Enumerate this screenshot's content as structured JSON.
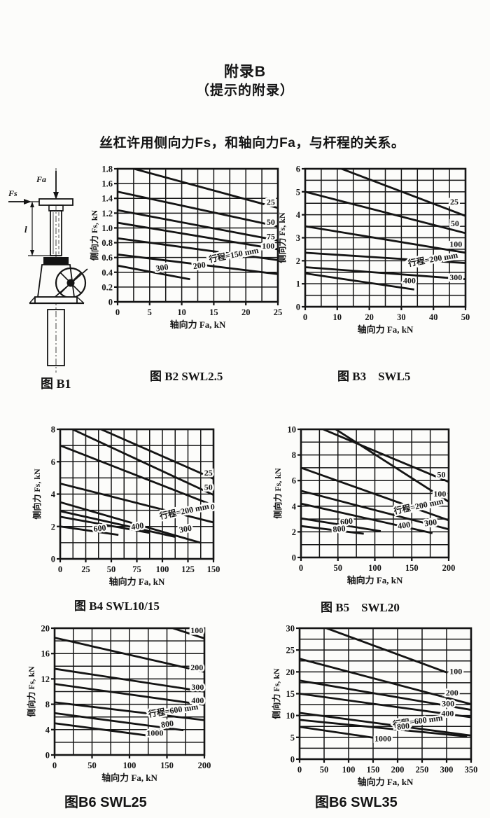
{
  "page": {
    "title": "附录B",
    "subtitle": "（提示的附录）",
    "intro": "丝杠许用侧向力Fs，和轴向力Fa，与杆程的关系。"
  },
  "figure_b1": {
    "caption": "图 B1",
    "axial_force_label": "Fa",
    "side_force_label": "Fs",
    "stroke_length_label": "l"
  },
  "chart_data": [
    {
      "type": "line",
      "id": "b2",
      "caption": "图 B2 SWL2.5",
      "x_label": "轴向力 Fa, kN",
      "y_label": "侧向力 Fs, kN",
      "x_min": 0,
      "x_max": 25,
      "x_grid": 2.5,
      "x_ticks": [
        "0",
        "5",
        "10",
        "15",
        "20",
        "25"
      ],
      "y_min": 0,
      "y_max": 1.8,
      "y_grid": 0.2,
      "y_ticks": [
        "0",
        "0.2",
        "0.4",
        "0.6",
        "0.8",
        "1.0",
        "1.2",
        "1.4",
        "1.6",
        "1.8"
      ],
      "lines": [
        {
          "label": "25",
          "pts": [
            [
              0,
              1.86
            ],
            [
              25,
              1.27
            ]
          ],
          "label_at": [
            23.9,
            1.31
          ],
          "rot": 0
        },
        {
          "label": "50",
          "pts": [
            [
              0,
              1.49
            ],
            [
              25,
              1.02
            ]
          ],
          "label_at": [
            23.9,
            1.04
          ],
          "rot": 0
        },
        {
          "label": "75",
          "pts": [
            [
              0,
              1.24
            ],
            [
              25,
              0.83
            ]
          ],
          "label_at": [
            23.9,
            0.85
          ],
          "rot": 0
        },
        {
          "label": "100",
          "pts": [
            [
              0,
              1.07
            ],
            [
              25,
              0.71
            ]
          ],
          "label_at": [
            23.5,
            0.72
          ],
          "rot": 0
        },
        {
          "label": "行程=150 mm",
          "pts": [
            [
              0,
              0.86
            ],
            [
              25,
              0.565
            ]
          ],
          "label_at": [
            18.2,
            0.6
          ],
          "rot": -11
        },
        {
          "label": "200",
          "pts": [
            [
              0,
              0.64
            ],
            [
              25,
              0.375
            ]
          ],
          "label_at": [
            12.8,
            0.455
          ],
          "rot": -8
        },
        {
          "label": "300",
          "pts": [
            [
              0,
              0.49
            ],
            [
              11.3,
              0.305
            ]
          ],
          "label_at": [
            7.0,
            0.425
          ],
          "rot": -9
        }
      ]
    },
    {
      "type": "line",
      "id": "b3",
      "caption": "图 B3　SWL5",
      "x_label": "轴向力 Fa, kN",
      "y_label": "侧向力 Fs, kN",
      "x_min": 0,
      "x_max": 50,
      "x_grid": 5,
      "x_ticks": [
        "0",
        "10",
        "20",
        "30",
        "40",
        "50"
      ],
      "y_min": 0,
      "y_max": 6,
      "y_grid": 0.5,
      "y_ticks": [
        "0",
        "1",
        "2",
        "3",
        "4",
        "5",
        "6"
      ],
      "lines": [
        {
          "label": "25",
          "pts": [
            [
              0,
              6.6
            ],
            [
              50,
              3.95
            ]
          ],
          "label_at": [
            46.5,
            4.45
          ],
          "rot": 0
        },
        {
          "label": "50",
          "pts": [
            [
              0,
              5.0
            ],
            [
              50,
              3.2
            ]
          ],
          "label_at": [
            46.7,
            3.5
          ],
          "rot": 0
        },
        {
          "label": "100",
          "pts": [
            [
              0,
              3.5
            ],
            [
              50,
              2.35
            ]
          ],
          "label_at": [
            47.0,
            2.6
          ],
          "rot": 0
        },
        {
          "label": "行程=200 mm",
          "pts": [
            [
              0,
              2.35
            ],
            [
              50,
              1.9
            ]
          ],
          "label_at": [
            40.0,
            1.95
          ],
          "rot": -10
        },
        {
          "label": "300",
          "pts": [
            [
              0,
              1.72
            ],
            [
              50,
              1.2
            ]
          ],
          "label_at": [
            47.0,
            1.15
          ],
          "rot": 0
        },
        {
          "label": "400",
          "pts": [
            [
              0,
              1.45
            ],
            [
              34,
              0.75
            ]
          ],
          "label_at": [
            32.5,
            1.02
          ],
          "rot": 0
        }
      ]
    },
    {
      "type": "line",
      "id": "b4",
      "caption": "图 B4 SWL10/15",
      "x_label": "轴向力 Fa, kN",
      "y_label": "侧向力 Fs, kN",
      "x_min": 0,
      "x_max": 150,
      "x_grid": 12.5,
      "x_ticks": [
        "0",
        "25",
        "50",
        "75",
        "100",
        "125",
        "150"
      ],
      "y_min": 0,
      "y_max": 8,
      "y_grid": 1,
      "y_ticks": [
        "0",
        "2",
        "4",
        "6",
        "8"
      ],
      "lines": [
        {
          "label": "25",
          "pts": [
            [
              40,
              8
            ],
            [
              150,
              4.95
            ]
          ],
          "label_at": [
            145,
            5.15
          ],
          "rot": 0
        },
        {
          "label": "50",
          "pts": [
            [
              12,
              8
            ],
            [
              150,
              3.95
            ]
          ],
          "label_at": [
            145,
            4.25
          ],
          "rot": 0
        },
        {
          "label": "100",
          "pts": [
            [
              0,
              7.0
            ],
            [
              150,
              3.3
            ]
          ],
          "label_at": [
            145,
            3.05
          ],
          "rot": 0
        },
        {
          "label": "行程=200 mm",
          "pts": [
            [
              0,
              4.65
            ],
            [
              150,
              2.25
            ]
          ],
          "label_at": [
            122,
            2.78
          ],
          "rot": -12
        },
        {
          "label": "300",
          "pts": [
            [
              0,
              3.5
            ],
            [
              137,
              1.0
            ]
          ],
          "label_at": [
            123,
            1.68
          ],
          "rot": -10
        },
        {
          "label": "400",
          "pts": [
            [
              0,
              2.95
            ],
            [
              113,
              1.35
            ]
          ],
          "label_at": [
            76,
            1.85
          ],
          "rot": -8
        },
        {
          "label": "",
          "pts": [
            [
              0,
              2.6
            ],
            [
              88,
              1.6
            ]
          ],
          "label_at": [
            0,
            0
          ],
          "rot": 0
        },
        {
          "label": "600",
          "pts": [
            [
              0,
              2.0
            ],
            [
              57,
              1.48
            ]
          ],
          "label_at": [
            39,
            1.72
          ],
          "rot": -6
        }
      ]
    },
    {
      "type": "line",
      "id": "b5",
      "caption": "图 B5　SWL20",
      "x_label": "轴向力 Fa, kN",
      "y_label": "侧向力 Fs, kN",
      "x_min": 0,
      "x_max": 200,
      "x_grid": 25,
      "x_ticks": [
        "0",
        "50",
        "100",
        "150",
        "200"
      ],
      "y_min": 0,
      "y_max": 10,
      "y_grid": 1,
      "y_ticks": [
        "0",
        "2",
        "4",
        "6",
        "8",
        "10"
      ],
      "lines": [
        {
          "label": "50",
          "pts": [
            [
              30,
              10
            ],
            [
              200,
              5.9
            ]
          ],
          "label_at": [
            190,
            6.25
          ],
          "rot": 0
        },
        {
          "label": "100",
          "pts": [
            [
              47,
              10
            ],
            [
              200,
              4.35
            ]
          ],
          "label_at": [
            188,
            4.75
          ],
          "rot": 0
        },
        {
          "label": "行程=200 mm",
          "pts": [
            [
              0,
              7.0
            ],
            [
              200,
              2.9
            ]
          ],
          "label_at": [
            160,
            3.8
          ],
          "rot": -12
        },
        {
          "label": "300",
          "pts": [
            [
              0,
              5.2
            ],
            [
              200,
              2.2
            ]
          ],
          "label_at": [
            176,
            2.5
          ],
          "rot": -8
        },
        {
          "label": "400",
          "pts": [
            [
              0,
              4.2
            ],
            [
              178,
              1.9
            ]
          ],
          "label_at": [
            140,
            2.3
          ],
          "rot": -8
        },
        {
          "label": "600",
          "pts": [
            [
              0,
              3.05
            ],
            [
              108,
              2.05
            ]
          ],
          "label_at": [
            62,
            2.6
          ],
          "rot": -6
        },
        {
          "label": "800",
          "pts": [
            [
              0,
              2.45
            ],
            [
              85,
              1.85
            ]
          ],
          "label_at": [
            52,
            2.02
          ],
          "rot": -5
        }
      ]
    },
    {
      "type": "line",
      "id": "b6a",
      "caption": "图B6 SWL25",
      "x_label": "轴向力 Fa, kN",
      "y_label": "侧向力 Fs, kN",
      "x_min": 0,
      "x_max": 200,
      "x_grid": 25,
      "x_ticks": [
        "0",
        "50",
        "100",
        "150",
        "200"
      ],
      "y_min": 0,
      "y_max": 20,
      "y_grid": 2,
      "y_ticks": [
        "0",
        "4",
        "8",
        "12",
        "16",
        "20"
      ],
      "lines": [
        {
          "label": "100",
          "pts": [
            [
              158,
              20
            ],
            [
              200,
              18.4
            ]
          ],
          "label_at": [
            190,
            19.2
          ],
          "rot": 0
        },
        {
          "label": "200",
          "pts": [
            [
              0,
              18.5
            ],
            [
              200,
              13.1
            ]
          ],
          "label_at": [
            190,
            13.35
          ],
          "rot": 0
        },
        {
          "label": "300",
          "pts": [
            [
              0,
              13.6
            ],
            [
              200,
              10.0
            ]
          ],
          "label_at": [
            191,
            10.3
          ],
          "rot": 0
        },
        {
          "label": "400",
          "pts": [
            [
              0,
              11.2
            ],
            [
              200,
              7.9
            ]
          ],
          "label_at": [
            191,
            8.2
          ],
          "rot": 0
        },
        {
          "label": "行程=600 mm",
          "pts": [
            [
              0,
              8.3
            ],
            [
              200,
              5.5
            ]
          ],
          "label_at": [
            159,
            6.6
          ],
          "rot": -9
        },
        {
          "label": "800",
          "pts": [
            [
              0,
              6.6
            ],
            [
              172,
              3.9
            ]
          ],
          "label_at": [
            151,
            4.45
          ],
          "rot": -8
        },
        {
          "label": "1000",
          "pts": [
            [
              0,
              5.0
            ],
            [
              122,
              3.1
            ]
          ],
          "label_at": [
            134,
            3.05
          ],
          "rot": 0
        }
      ]
    },
    {
      "type": "line",
      "id": "b6b",
      "caption": "图B6 SWL35",
      "x_label": "轴向力 Fa, kN",
      "y_label": "侧向力 Fs, kN",
      "x_min": 0,
      "x_max": 350,
      "x_grid": 50,
      "x_ticks": [
        "0",
        "50",
        "100",
        "150",
        "200",
        "250",
        "300",
        "350"
      ],
      "y_min": 0,
      "y_max": 30,
      "y_grid": 2.5,
      "y_ticks": [
        "0",
        "5",
        "10",
        "15",
        "20",
        "25",
        "30"
      ],
      "lines": [
        {
          "label": "100",
          "pts": [
            [
              55,
              30
            ],
            [
              302,
              19.8
            ]
          ],
          "label_at": [
            319,
            19.5
          ],
          "rot": 0
        },
        {
          "label": "200",
          "pts": [
            [
              0,
              23
            ],
            [
              350,
              12.6
            ]
          ],
          "label_at": [
            311,
            14.6
          ],
          "rot": 0
        },
        {
          "label": "300",
          "pts": [
            [
              0,
              18
            ],
            [
              350,
              11.3
            ]
          ],
          "label_at": [
            303,
            12.1
          ],
          "rot": 0
        },
        {
          "label": "400",
          "pts": [
            [
              0,
              15
            ],
            [
              350,
              9.6
            ]
          ],
          "label_at": [
            302,
            9.9
          ],
          "rot": 0
        },
        {
          "label": "行程=600 mm",
          "pts": [
            [
              0,
              10.6
            ],
            [
              350,
              5.4
            ]
          ],
          "label_at": [
            242,
            8.1
          ],
          "rot": -8
        },
        {
          "label": "800",
          "pts": [
            [
              0,
              9.0
            ],
            [
              342,
              5.2
            ]
          ],
          "label_at": [
            212,
            6.9
          ],
          "rot": -6
        },
        {
          "label": "1000",
          "pts": [
            [
              0,
              7.4
            ],
            [
              152,
              4.9
            ]
          ],
          "label_at": [
            170,
            4.1
          ],
          "rot": 0
        }
      ]
    }
  ]
}
